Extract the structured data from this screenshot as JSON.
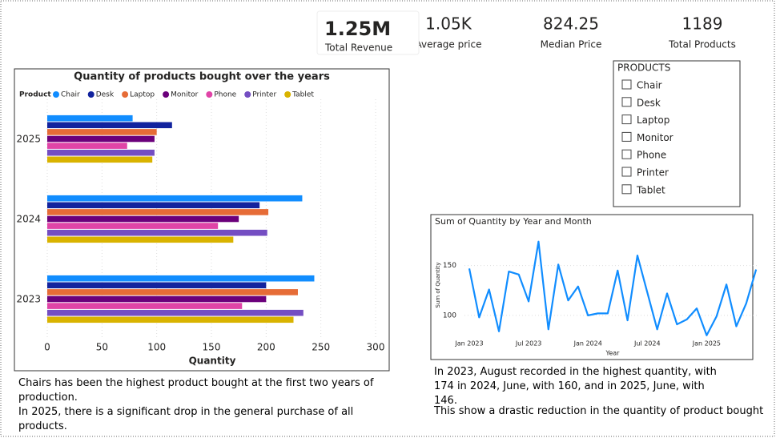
{
  "cards": [
    {
      "value": "1.25M",
      "label": "Total Revenue"
    },
    {
      "value": "1.05K",
      "label": "Average price"
    },
    {
      "value": "824.25",
      "label": "Median Price"
    },
    {
      "value": "1189",
      "label": "Total Products"
    }
  ],
  "slicer": {
    "title": "PRODUCTS",
    "items": [
      "Chair",
      "Desk",
      "Laptop",
      "Monitor",
      "Phone",
      "Printer",
      "Tablet"
    ]
  },
  "notes_left": [
    "Chairs has been the highest product bought at the first two years of production.",
    "In 2025, there is a significant drop in the general purchase of all products."
  ],
  "notes_right": [
    "In 2023, August recorded in the highest quantity, with 174 in 2024, June, with 160, and in 2025, June, with 146.",
    "This show a drastic reduction in the quantity of product bought"
  ],
  "chart_data": [
    {
      "type": "bar",
      "orientation": "horizontal",
      "title": "Quantity of products bought over the years",
      "legend_title": "Product",
      "x_label": "Quantity",
      "categories": [
        "2025",
        "2024",
        "2023"
      ],
      "series": [
        {
          "name": "Chair",
          "color": "#118dff",
          "values": [
            78,
            233,
            244
          ]
        },
        {
          "name": "Desk",
          "color": "#12239e",
          "values": [
            114,
            194,
            200
          ]
        },
        {
          "name": "Laptop",
          "color": "#e66c37",
          "values": [
            100,
            202,
            229
          ]
        },
        {
          "name": "Monitor",
          "color": "#6b007b",
          "values": [
            98,
            175,
            200
          ]
        },
        {
          "name": "Phone",
          "color": "#e044a7",
          "values": [
            73,
            156,
            178
          ]
        },
        {
          "name": "Printer",
          "color": "#744ec2",
          "values": [
            98,
            201,
            234
          ]
        },
        {
          "name": "Tablet",
          "color": "#d9b300",
          "values": [
            96,
            170,
            225
          ]
        }
      ],
      "xlim": [
        0,
        300
      ],
      "xticks": [
        0,
        50,
        100,
        150,
        200,
        250,
        300
      ],
      "grid": true
    },
    {
      "type": "line",
      "title": "Sum of Quantity by Year and Month",
      "x_label": "Year",
      "y_label": "Sum of Quantity",
      "categories": [
        "Jan 2023",
        null,
        null,
        null,
        null,
        null,
        "Jul 2023",
        null,
        null,
        null,
        null,
        null,
        "Jan 2024",
        null,
        null,
        null,
        null,
        null,
        "Jul 2024",
        null,
        null,
        null,
        null,
        null,
        "Jan 2025",
        null,
        null,
        null,
        null,
        null
      ],
      "values": [
        147,
        98,
        126,
        84,
        144,
        141,
        114,
        174,
        86,
        151,
        115,
        129,
        100,
        102,
        102,
        145,
        95,
        160,
        123,
        86,
        122,
        91,
        96,
        107,
        80,
        99,
        131,
        89,
        112,
        146
      ],
      "color": "#118dff",
      "ylim": [
        75,
        185
      ],
      "yticks": [
        100,
        150
      ],
      "grid": true
    }
  ]
}
